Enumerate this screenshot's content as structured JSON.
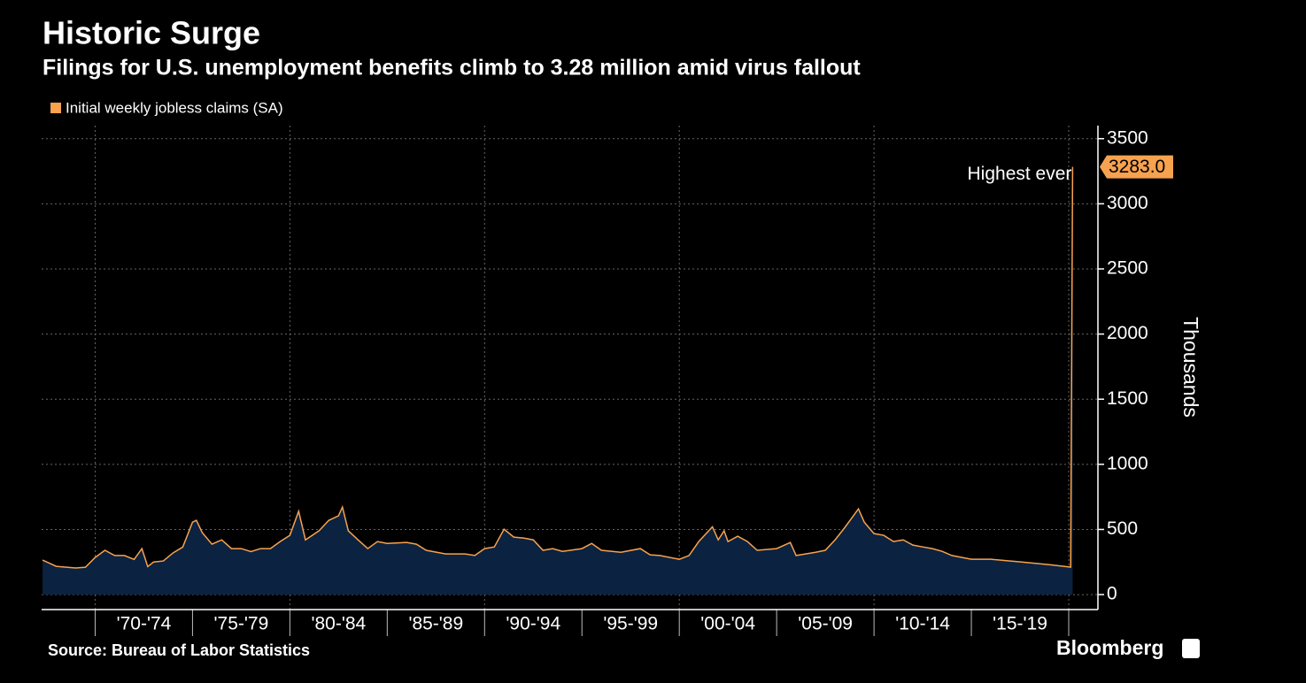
{
  "chart_data": {
    "type": "area",
    "title": "Historic Surge",
    "subtitle": "Filings for U.S. unemployment benefits climb to 3.28 million amid virus fallout",
    "y_label": "Thousands",
    "source": "Source: Bureau of Labor Statistics",
    "brand": "Bloomberg",
    "annotation": "Highest ever",
    "legend": "top-left",
    "grid": true,
    "xlim": [
      1967.25,
      2021.5
    ],
    "ylim": [
      -115,
      3600
    ],
    "yticks": [
      0,
      500,
      1000,
      1500,
      2000,
      2500,
      3000,
      3500
    ],
    "xticks": [
      {
        "value": 1972.5,
        "label": "'70-'74"
      },
      {
        "value": 1977.5,
        "label": "'75-'79"
      },
      {
        "value": 1982.5,
        "label": "'80-'84"
      },
      {
        "value": 1987.5,
        "label": "'85-'89"
      },
      {
        "value": 1992.5,
        "label": "'90-'94"
      },
      {
        "value": 1997.5,
        "label": "'95-'99"
      },
      {
        "value": 2002.5,
        "label": "'00-'04"
      },
      {
        "value": 2007.5,
        "label": "'05-'09"
      },
      {
        "value": 2012.5,
        "label": "'10-'14"
      },
      {
        "value": 2017.5,
        "label": "'15-'19"
      }
    ],
    "x": [
      1967.3,
      1968,
      1969,
      1969.5,
      1970,
      1970.5,
      1971,
      1971.5,
      1972,
      1972.4,
      1972.7,
      1973,
      1973.5,
      1974,
      1974.5,
      1975,
      1975.2,
      1975.5,
      1976,
      1976.5,
      1977,
      1977.5,
      1978,
      1978.5,
      1979,
      1979.5,
      1980,
      1980.45,
      1980.8,
      1981.5,
      1982,
      1982.5,
      1982.7,
      1983,
      1983.5,
      1984,
      1984.5,
      1985,
      1986,
      1986.5,
      1987,
      1988,
      1989,
      1989.5,
      1990,
      1990.5,
      1991,
      1991.5,
      1992,
      1992.5,
      1993,
      1993.5,
      1994,
      1995,
      1995.5,
      1996,
      1997,
      1998,
      1998.5,
      1999,
      2000,
      2000.5,
      2001,
      2001.7,
      2002,
      2002.3,
      2002.5,
      2003,
      2003.5,
      2004,
      2005,
      2005.7,
      2006,
      2007,
      2007.5,
      2008,
      2008.5,
      2009.2,
      2009.5,
      2010,
      2010.5,
      2011,
      2011.5,
      2012,
      2012.5,
      2013,
      2013.5,
      2014,
      2015,
      2016,
      2017,
      2018,
      2019,
      2020.1,
      2020.2
    ],
    "series": [
      {
        "name": "Initial weekly jobless claims (SA)",
        "color": "#f7a24f",
        "fill": "#0b2240",
        "values": [
          265,
          217,
          204,
          210,
          285,
          340,
          300,
          300,
          270,
          353,
          215,
          250,
          258,
          320,
          365,
          556,
          570,
          475,
          387,
          420,
          353,
          353,
          330,
          353,
          353,
          407,
          455,
          640,
          420,
          490,
          570,
          605,
          672,
          490,
          420,
          353,
          407,
          393,
          400,
          387,
          340,
          312,
          312,
          300,
          353,
          366,
          502,
          441,
          434,
          420,
          340,
          353,
          332,
          353,
          393,
          340,
          325,
          353,
          305,
          300,
          271,
          300,
          407,
          520,
          420,
          490,
          407,
          448,
          407,
          340,
          353,
          400,
          300,
          325,
          340,
          420,
          515,
          658,
          556,
          468,
          455,
          407,
          420,
          380,
          366,
          353,
          332,
          300,
          271,
          271,
          258,
          244,
          230,
          211,
          3283
        ],
        "value_labels": [
          null,
          null,
          null,
          null,
          null,
          null,
          null,
          null,
          null,
          null,
          null,
          null,
          null,
          null,
          null,
          null,
          null,
          null,
          null,
          null,
          null,
          null,
          null,
          null,
          null,
          null,
          null,
          null,
          null,
          null,
          null,
          null,
          null,
          null,
          null,
          null,
          null,
          null,
          null,
          null,
          null,
          null,
          null,
          null,
          null,
          null,
          null,
          null,
          null,
          null,
          null,
          null,
          null,
          null,
          null,
          null,
          null,
          null,
          null,
          null,
          null,
          null,
          null,
          null,
          null,
          null,
          null,
          null,
          null,
          null,
          null,
          null,
          null,
          null,
          null,
          null,
          null,
          null,
          null,
          null,
          null,
          null,
          null,
          null,
          null,
          null,
          null,
          null,
          null,
          null,
          null,
          null,
          null,
          null,
          "3283.0"
        ]
      }
    ]
  }
}
